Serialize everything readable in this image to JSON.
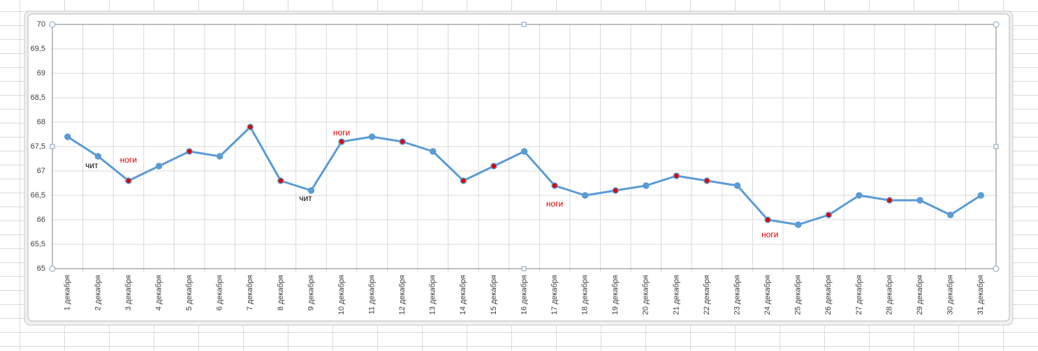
{
  "chart_data": {
    "type": "line",
    "categories": [
      "1 декабря",
      "2 декабря",
      "3 декабря",
      "4 декабря",
      "5 декабря",
      "6 декабря",
      "7 декабря",
      "8 декабря",
      "9 декабря",
      "10 декабря",
      "11 декабря",
      "12 декабря",
      "13 декабря",
      "14 декабря",
      "15 декабря",
      "16 декабря",
      "17 декабря",
      "18 декабря",
      "19 декабря",
      "20 декабря",
      "21 декабря",
      "22 декабря",
      "23 декабря",
      "24 декабря",
      "25 декабря",
      "26 декабря",
      "27 декабря",
      "28 декабря",
      "29 декабря",
      "30 декабря",
      "31 декабря"
    ],
    "series": [
      {
        "color": "#5b9bd5",
        "values": [
          67.7,
          67.3,
          66.8,
          67.1,
          67.4,
          67.3,
          67.9,
          66.8,
          66.6,
          67.6,
          67.7,
          67.6,
          67.4,
          66.8,
          67.1,
          67.4,
          66.7,
          66.5,
          66.6,
          66.7,
          66.9,
          66.8,
          66.7,
          66.0,
          65.9,
          66.1,
          66.5,
          66.4,
          66.4,
          66.1,
          66.5
        ],
        "marker_colors": [
          "#5b9bd5",
          "#5b9bd5",
          "#e00000",
          "#5b9bd5",
          "#e00000",
          "#5b9bd5",
          "#e00000",
          "#e00000",
          "#5b9bd5",
          "#e00000",
          "#5b9bd5",
          "#e00000",
          "#5b9bd5",
          "#e00000",
          "#e00000",
          "#5b9bd5",
          "#e00000",
          "#5b9bd5",
          "#e00000",
          "#5b9bd5",
          "#e00000",
          "#e00000",
          "#5b9bd5",
          "#e00000",
          "#5b9bd5",
          "#e00000",
          "#5b9bd5",
          "#e00000",
          "#5b9bd5",
          "#5b9bd5",
          "#5b9bd5"
        ],
        "point_labels": [
          null,
          "чит",
          "ноги",
          null,
          null,
          null,
          null,
          null,
          "чит",
          "ноги",
          null,
          null,
          null,
          null,
          null,
          null,
          "ноги",
          null,
          null,
          null,
          null,
          null,
          null,
          "ноги",
          null,
          null,
          null,
          null,
          null,
          null,
          null
        ],
        "point_label_colors": [
          null,
          "#000000",
          "#e00000",
          null,
          null,
          null,
          null,
          null,
          "#000000",
          "#e00000",
          null,
          null,
          null,
          null,
          null,
          null,
          "#e00000",
          null,
          null,
          null,
          null,
          null,
          null,
          "#e00000",
          null,
          null,
          null,
          null,
          null,
          null,
          null
        ]
      }
    ],
    "ylim": [
      65,
      70
    ],
    "yticks": [
      65,
      {
        "value": 65.5,
        "label": "65,5"
      },
      66,
      {
        "value": 66.5,
        "label": "66,5"
      },
      67,
      {
        "value": 67.5,
        "label": "67,5"
      },
      68,
      {
        "value": 68.5,
        "label": "68,5"
      },
      69,
      {
        "value": 69.5,
        "label": "69,5"
      },
      70
    ],
    "grid": true
  }
}
